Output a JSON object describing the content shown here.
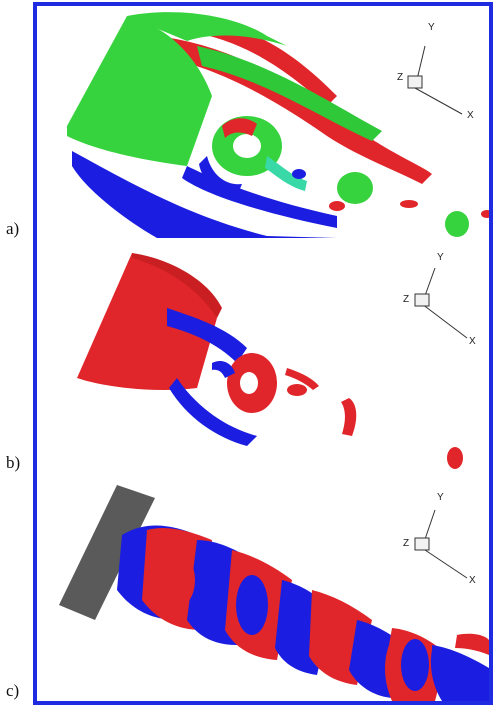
{
  "panels": [
    {
      "label": "a)",
      "axes": {
        "x": "X",
        "y": "Y",
        "z": "Z"
      }
    },
    {
      "label": "b)",
      "axes": {
        "x": "X",
        "y": "Y",
        "z": "Z"
      }
    },
    {
      "label": "c)",
      "axes": {
        "x": "X",
        "y": "Y",
        "z": "Z"
      }
    }
  ],
  "colors": {
    "frame": "#1f2be0",
    "red": "#e0262a",
    "green": "#37d33e",
    "blue": "#1b1ee0",
    "cyan": "#38d9a6",
    "gray": "#5a5a5a"
  }
}
